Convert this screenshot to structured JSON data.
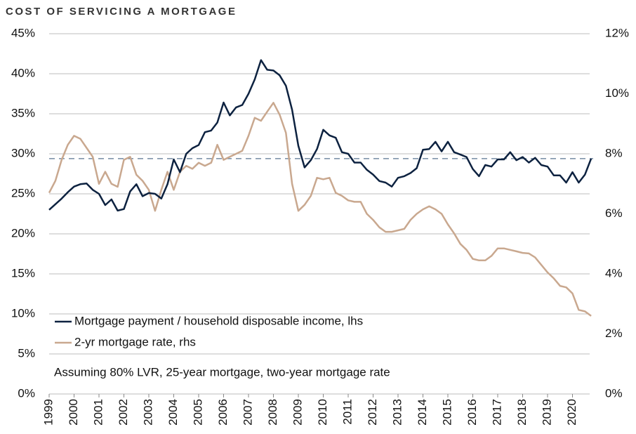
{
  "chart_data": {
    "type": "line",
    "title": "COST OF SERVICING A MORTGAGE",
    "annotation": "Assuming 80% LVR, 25-year mortgage, two-year mortgage rate",
    "x": [
      1999,
      1999.25,
      1999.5,
      1999.75,
      2000,
      2000.25,
      2000.5,
      2000.75,
      2001,
      2001.25,
      2001.5,
      2001.75,
      2002,
      2002.25,
      2002.5,
      2002.75,
      2003,
      2003.25,
      2003.5,
      2003.75,
      2004,
      2004.25,
      2004.5,
      2004.75,
      2005,
      2005.25,
      2005.5,
      2005.75,
      2006,
      2006.25,
      2006.5,
      2006.75,
      2007,
      2007.25,
      2007.5,
      2007.75,
      2008,
      2008.25,
      2008.5,
      2008.75,
      2009,
      2009.25,
      2009.5,
      2009.75,
      2010,
      2010.25,
      2010.5,
      2010.75,
      2011,
      2011.25,
      2011.5,
      2011.75,
      2012,
      2012.25,
      2012.5,
      2012.75,
      2013,
      2013.25,
      2013.5,
      2013.75,
      2014,
      2014.25,
      2014.5,
      2014.75,
      2015,
      2015.25,
      2015.5,
      2015.75,
      2016,
      2016.25,
      2016.5,
      2016.75,
      2017,
      2017.25,
      2017.5,
      2017.75,
      2018,
      2018.25,
      2018.5,
      2018.75,
      2019,
      2019.25,
      2019.5,
      2019.75,
      2020,
      2020.25,
      2020.5,
      2020.75
    ],
    "series": [
      {
        "name": "Mortgage payment / household disposable income, lhs",
        "color": "#0d2240",
        "values": [
          23.0,
          23.7,
          24.4,
          25.2,
          25.9,
          26.2,
          26.3,
          25.5,
          25.0,
          23.6,
          24.3,
          22.9,
          23.1,
          25.3,
          26.2,
          24.7,
          25.1,
          25.0,
          24.4,
          26.2,
          29.3,
          27.7,
          30.0,
          30.7,
          31.1,
          32.7,
          32.9,
          33.9,
          36.4,
          34.8,
          35.8,
          36.1,
          37.5,
          39.3,
          41.7,
          40.5,
          40.4,
          39.8,
          38.5,
          35.5,
          31.0,
          28.3,
          29.2,
          30.6,
          33.0,
          32.3,
          32.0,
          30.2,
          30.0,
          28.9,
          28.9,
          28.0,
          27.4,
          26.6,
          26.4,
          25.9,
          27.0,
          27.2,
          27.6,
          28.2,
          30.5,
          30.6,
          31.5,
          30.3,
          31.5,
          30.2,
          29.9,
          29.6,
          28.1,
          27.2,
          28.6,
          28.4,
          29.3,
          29.3,
          30.2,
          29.2,
          29.6,
          28.9,
          29.5,
          28.6,
          28.4,
          27.3,
          27.3,
          26.4,
          27.7,
          26.4,
          27.4,
          29.4
        ]
      },
      {
        "name": "2-yr mortgage rate, rhs",
        "color": "#c9a88f",
        "axis": "y2",
        "values": [
          6.7,
          7.1,
          7.8,
          8.3,
          8.6,
          8.5,
          8.2,
          7.9,
          7.0,
          7.4,
          7.0,
          6.9,
          7.8,
          7.9,
          7.3,
          7.1,
          6.8,
          6.1,
          6.8,
          7.4,
          6.8,
          7.4,
          7.6,
          7.5,
          7.7,
          7.6,
          7.7,
          8.3,
          7.8,
          7.9,
          8.0,
          8.1,
          8.6,
          9.2,
          9.1,
          9.4,
          9.7,
          9.3,
          8.7,
          7.0,
          6.1,
          6.3,
          6.6,
          7.2,
          7.15,
          7.2,
          6.7,
          6.6,
          6.45,
          6.4,
          6.4,
          6.0,
          5.8,
          5.55,
          5.4,
          5.4,
          5.45,
          5.5,
          5.8,
          6.0,
          6.15,
          6.25,
          6.15,
          6.0,
          5.65,
          5.35,
          5.0,
          4.8,
          4.5,
          4.45,
          4.45,
          4.6,
          4.85,
          4.85,
          4.8,
          4.75,
          4.7,
          4.68,
          4.55,
          4.3,
          4.05,
          3.85,
          3.6,
          3.55,
          3.35,
          2.8,
          2.75,
          2.6
        ]
      }
    ],
    "hline": {
      "value": 29.4,
      "color": "#5a7590"
    },
    "xlim": [
      1999,
      2021
    ],
    "xticks": [
      1999,
      2000,
      2001,
      2002,
      2003,
      2004,
      2005,
      2006,
      2007,
      2008,
      2009,
      2010,
      2011,
      2012,
      2013,
      2014,
      2015,
      2016,
      2017,
      2018,
      2019,
      2020
    ],
    "ylim": [
      0,
      45
    ],
    "yticks": [
      {
        "value": 0,
        "label": "0%"
      },
      {
        "value": 5,
        "label": "5%"
      },
      {
        "value": 10,
        "label": "10%"
      },
      {
        "value": 15,
        "label": "15%"
      },
      {
        "value": 20,
        "label": "20%"
      },
      {
        "value": 25,
        "label": "25%"
      },
      {
        "value": 30,
        "label": "30%"
      },
      {
        "value": 35,
        "label": "35%"
      },
      {
        "value": 40,
        "label": "40%"
      },
      {
        "value": 45,
        "label": "45%"
      }
    ],
    "y2lim": [
      0,
      12
    ],
    "y2ticks": [
      {
        "value": 0,
        "label": "0%"
      },
      {
        "value": 2,
        "label": "2%"
      },
      {
        "value": 4,
        "label": "4%"
      },
      {
        "value": 6,
        "label": "6%"
      },
      {
        "value": 8,
        "label": "8%"
      },
      {
        "value": 10,
        "label": "10%"
      },
      {
        "value": 12,
        "label": "12%"
      }
    ],
    "grid": true,
    "legend": "lower left"
  }
}
